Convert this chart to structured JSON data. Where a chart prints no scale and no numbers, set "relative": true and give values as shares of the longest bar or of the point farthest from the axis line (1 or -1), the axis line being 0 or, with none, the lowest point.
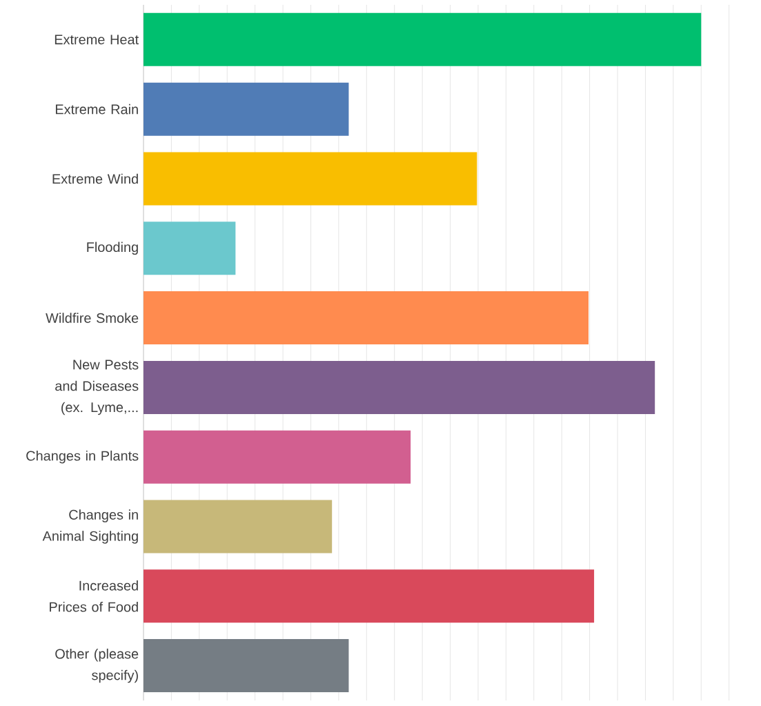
{
  "chart_data": {
    "type": "bar",
    "orientation": "horizontal",
    "relative": true,
    "grid": "x",
    "categories": [
      "Extreme Heat",
      "Extreme Rain",
      "Extreme Wind",
      "Flooding",
      "Wildfire Smoke",
      "New Pests and Diseases (ex. Lyme,...",
      "Changes in Plants",
      "Changes in Animal Sighting",
      "Increased Prices of Food",
      "Other (please specify)"
    ],
    "values": [
      1,
      0.368,
      0.598,
      0.165,
      0.798,
      0.917,
      0.479,
      0.338,
      0.808,
      0.368
    ],
    "colors": [
      "#00bf6f",
      "#507cb6",
      "#f9be00",
      "#6bc8cd",
      "#ff8b4f",
      "#7d5e8e",
      "#d25f90",
      "#c7b879",
      "#d9495b",
      "#757d84"
    ]
  }
}
